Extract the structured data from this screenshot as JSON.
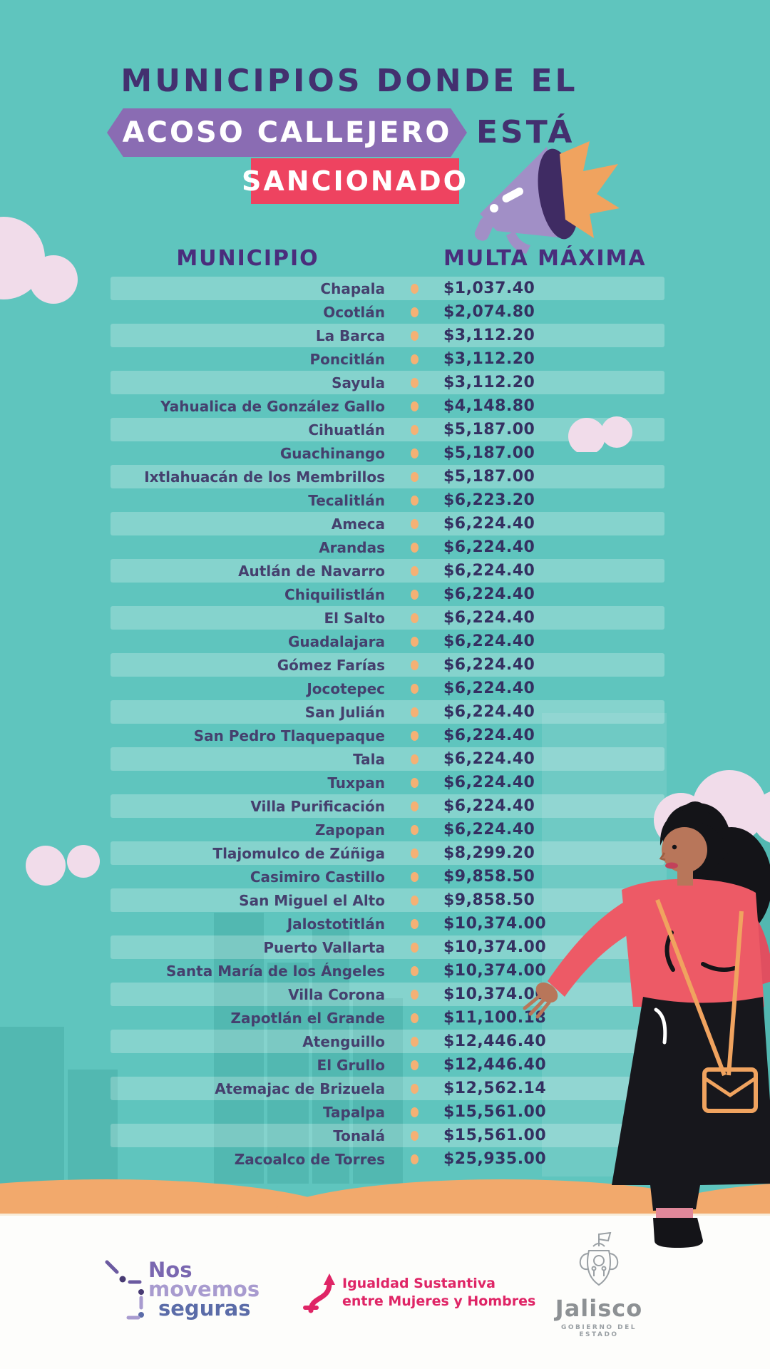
{
  "poster": {
    "title": {
      "line1": "MUNICIPIOS DONDE EL",
      "highlight1": "ACOSO CALLEJERO",
      "suffix": "ESTÁ",
      "highlight2": "SANCIONADO"
    },
    "table": {
      "col_municipio": "MUNICIPIO",
      "col_multa": "MULTA MÁXIMA",
      "rows": [
        {
          "municipio": "Chapala",
          "multa": "$1,037.40"
        },
        {
          "municipio": "Ocotlán",
          "multa": "$2,074.80"
        },
        {
          "municipio": "La Barca",
          "multa": "$3,112.20"
        },
        {
          "municipio": "Poncitlán",
          "multa": "$3,112.20"
        },
        {
          "municipio": "Sayula",
          "multa": "$3,112.20"
        },
        {
          "municipio": "Yahualica de González Gallo",
          "multa": "$4,148.80"
        },
        {
          "municipio": "Cihuatlán",
          "multa": "$5,187.00"
        },
        {
          "municipio": "Guachinango",
          "multa": "$5,187.00"
        },
        {
          "municipio": "Ixtlahuacán de los Membrillos",
          "multa": "$5,187.00"
        },
        {
          "municipio": "Tecalitlán",
          "multa": "$6,223.20"
        },
        {
          "municipio": "Ameca",
          "multa": "$6,224.40"
        },
        {
          "municipio": "Arandas",
          "multa": "$6,224.40"
        },
        {
          "municipio": "Autlán de Navarro",
          "multa": "$6,224.40"
        },
        {
          "municipio": "Chiquilistlán",
          "multa": "$6,224.40"
        },
        {
          "municipio": "El Salto",
          "multa": "$6,224.40"
        },
        {
          "municipio": "Guadalajara",
          "multa": "$6,224.40"
        },
        {
          "municipio": "Gómez Farías",
          "multa": "$6,224.40"
        },
        {
          "municipio": "Jocotepec",
          "multa": "$6,224.40"
        },
        {
          "municipio": "San Julián",
          "multa": "$6,224.40"
        },
        {
          "municipio": "San Pedro Tlaquepaque",
          "multa": "$6,224.40"
        },
        {
          "municipio": "Tala",
          "multa": "$6,224.40"
        },
        {
          "municipio": "Tuxpan",
          "multa": "$6,224.40"
        },
        {
          "municipio": "Villa Purificación",
          "multa": "$6,224.40"
        },
        {
          "municipio": "Zapopan",
          "multa": "$6,224.40"
        },
        {
          "municipio": "Tlajomulco de Zúñiga",
          "multa": "$8,299.20"
        },
        {
          "municipio": "Casimiro Castillo",
          "multa": "$9,858.50"
        },
        {
          "municipio": "San Miguel el Alto",
          "multa": "$9,858.50"
        },
        {
          "municipio": "Jalostotitlán",
          "multa": "$10,374.00"
        },
        {
          "municipio": "Puerto Vallarta",
          "multa": "$10,374.00"
        },
        {
          "municipio": "Santa María de los Ángeles",
          "multa": "$10,374.00"
        },
        {
          "municipio": "Villa Corona",
          "multa": "$10,374.00"
        },
        {
          "municipio": "Zapotlán el Grande",
          "multa": "$11,100.18"
        },
        {
          "municipio": "Atenguillo",
          "multa": "$12,446.40"
        },
        {
          "municipio": "El Grullo",
          "multa": "$12,446.40"
        },
        {
          "municipio": "Atemajac de Brizuela",
          "multa": "$12,562.14"
        },
        {
          "municipio": "Tapalpa",
          "multa": "$15,561.00"
        },
        {
          "municipio": "Tonalá",
          "multa": "$15,561.00"
        },
        {
          "municipio": "Zacoalco de Torres",
          "multa": "$25,935.00"
        }
      ]
    },
    "footer": {
      "brand1": {
        "line1": "Nos",
        "line2": "movemos",
        "line3": "seguras"
      },
      "brand2": {
        "line1": "Igualdad Sustantiva",
        "line2": "entre Mujeres y Hombres"
      },
      "brand3": {
        "name": "Jalisco",
        "tagline": "GOBIERNO DEL ESTADO"
      }
    },
    "colors": {
      "background": "#5fc5be",
      "row_stripe": "#83d2cc",
      "title_purple": "#43306f",
      "ribbon_purple": "#8a6cb3",
      "banner_red": "#ee4360",
      "bullet_orange": "#f4b175",
      "name_purple": "#45406e",
      "amount_navy": "#343061",
      "hill_orange": "#f2a96c",
      "cloud_pink": "#f1dcea",
      "brand_pink": "#df2566",
      "brand_purple": "#7a67b0",
      "jalisco_gray": "#8d9194"
    }
  }
}
